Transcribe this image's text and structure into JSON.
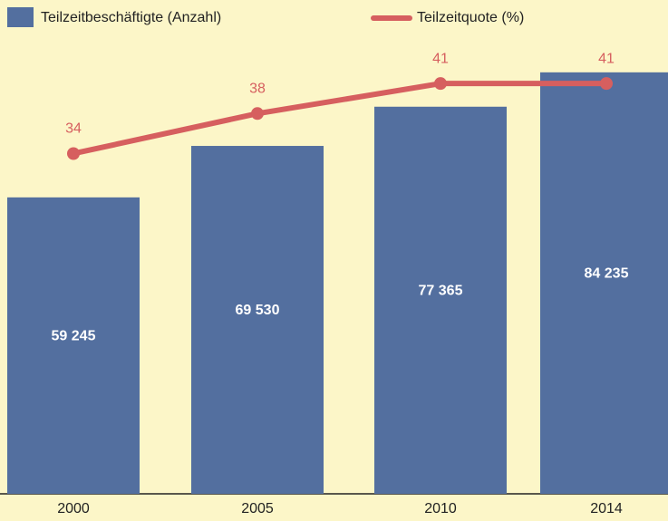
{
  "chart_data": {
    "type": "bar",
    "categories": [
      "2000",
      "2005",
      "2010",
      "2014"
    ],
    "series": [
      {
        "name": "Teilzeitbeschäftigte (Anzahl)",
        "color": "#536f9f",
        "type": "bar",
        "values": [
          59245,
          69530,
          77365,
          84235
        ],
        "value_labels": [
          "59 245",
          "69 530",
          "77 365",
          "84 235"
        ]
      },
      {
        "name": "Teilzeitquote (%)",
        "color": "#d65f5f",
        "type": "line",
        "axis": "y2",
        "values": [
          34,
          38,
          41,
          41
        ]
      }
    ],
    "ylim": [
      0,
      90000
    ],
    "y2lim": [
      0,
      45
    ],
    "grid": false
  }
}
